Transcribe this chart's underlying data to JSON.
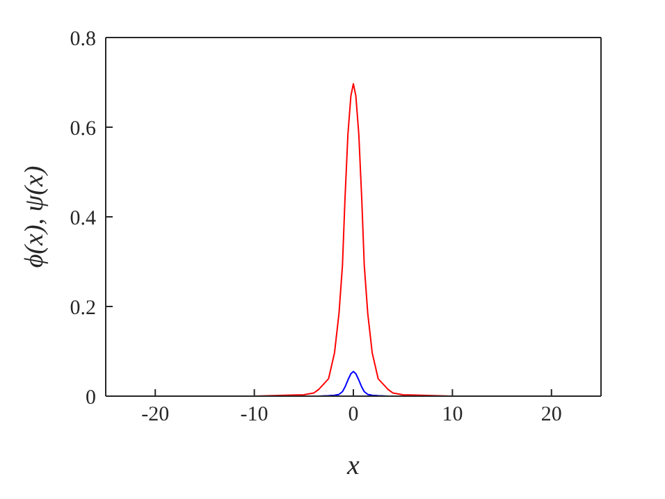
{
  "chart_data": {
    "type": "line",
    "xlabel": "x",
    "ylabel": "ϕ(x), ψ(x)",
    "x": [
      -25,
      -10,
      -5,
      -4,
      -3.5,
      -2.5,
      -1.9,
      -1.45,
      -1.1,
      -0.85,
      -0.55,
      -0.25,
      0,
      0.25,
      0.55,
      0.85,
      1.1,
      1.45,
      1.9,
      2.5,
      3.5,
      4,
      5,
      10,
      25
    ],
    "series": [
      {
        "color": "#ff0000",
        "values": [
          0,
          0,
          0.003,
          0.007,
          0.015,
          0.039,
          0.097,
          0.185,
          0.292,
          0.438,
          0.584,
          0.67,
          0.697,
          0.67,
          0.584,
          0.438,
          0.292,
          0.185,
          0.097,
          0.039,
          0.015,
          0.007,
          0.003,
          0,
          0
        ]
      },
      {
        "color": "#0000ff",
        "values": [
          null,
          null,
          null,
          0,
          0,
          0.001,
          0.002,
          0.004,
          0.01,
          0.02,
          0.036,
          0.05,
          0.055,
          0.05,
          0.036,
          0.02,
          0.01,
          0.004,
          0.002,
          0.001,
          0,
          0,
          null,
          null,
          null
        ]
      }
    ],
    "xlim": [
      -25,
      25
    ],
    "xticks": [
      -20,
      -10,
      0,
      10,
      20
    ],
    "ylim": [
      0,
      0.8
    ],
    "yticks": [
      0,
      0.2,
      0.4,
      0.6,
      0.8
    ],
    "grid": false,
    "legend": false,
    "marker": "none",
    "line_style": "solid"
  }
}
